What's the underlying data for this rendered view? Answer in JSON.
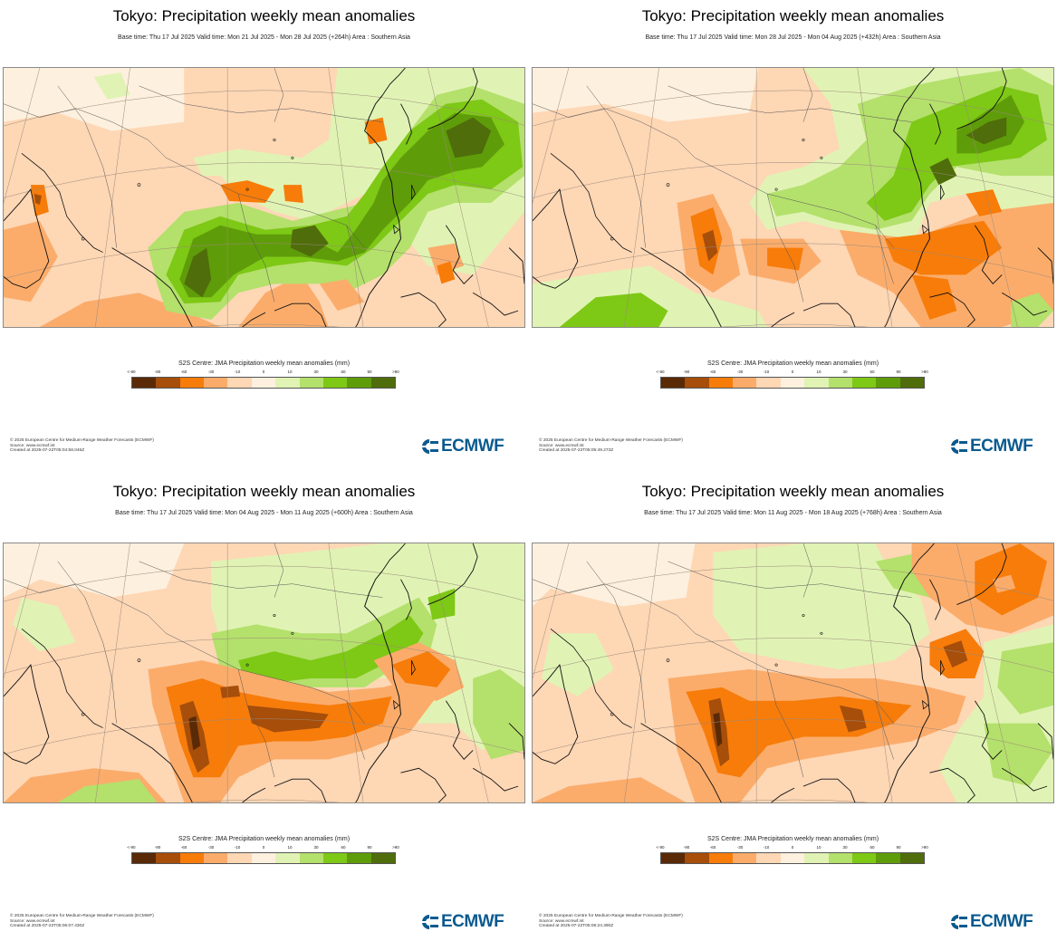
{
  "colors": {
    "scale": [
      "#5a2a06",
      "#a64e0a",
      "#f77c0a",
      "#fbac6b",
      "#fed7b5",
      "#fdf0de",
      "#e0f3b4",
      "#b4e06c",
      "#7ec816",
      "#5f9c0a",
      "#4f6d0b"
    ],
    "coast": "#111111",
    "border": "#555555",
    "logo": "#0a5a8f"
  },
  "legend": {
    "title": "S2S Centre: JMA Precipitation weekly mean anomalies (mm)",
    "ticks": [
      "<-90",
      "-90",
      "-60",
      "-30",
      "-10",
      "0",
      "10",
      "30",
      "60",
      "90",
      ">90"
    ]
  },
  "footer": {
    "line1": "© 2025 European Centre for Medium-Range Weather Forecasts (ECMWF)",
    "line2": "Source: www.ecmwf.int"
  },
  "logo": {
    "text": "ECMWF",
    "icon": "ecmwf-logo-icon"
  },
  "panels": [
    {
      "title": "Tokyo: Precipitation weekly mean anomalies",
      "subtitle": "Base time: Thu 17 Jul 2025 Valid time: Mon 21 Jul 2025 - Mon 28 Jul 2025 (+264h) Area : Southern Asia",
      "created": "Created at 2025-07-22T05:04:58.046Z"
    },
    {
      "title": "Tokyo: Precipitation weekly mean anomalies",
      "subtitle": "Base time: Thu 17 Jul 2025 Valid time: Mon 28 Jul 2025 - Mon 04 Aug 2025 (+432h) Area : Southern Asia",
      "created": "Created at 2025-07-22T05:05:49.273Z"
    },
    {
      "title": "Tokyo: Precipitation weekly mean anomalies",
      "subtitle": "Base time: Thu 17 Jul 2025 Valid time: Mon 04 Aug 2025 - Mon 11 Aug 2025 (+600h) Area : Southern Asia",
      "created": "Created at 2025-07-22T05:06:07.430Z"
    },
    {
      "title": "Tokyo: Precipitation weekly mean anomalies",
      "subtitle": "Base time: Thu 17 Jul 2025 Valid time: Mon 11 Aug 2025 - Mon 18 Aug 2025 (+768h) Area : Southern Asia",
      "created": "Created at 2025-07-22T05:06:24.390Z"
    }
  ]
}
